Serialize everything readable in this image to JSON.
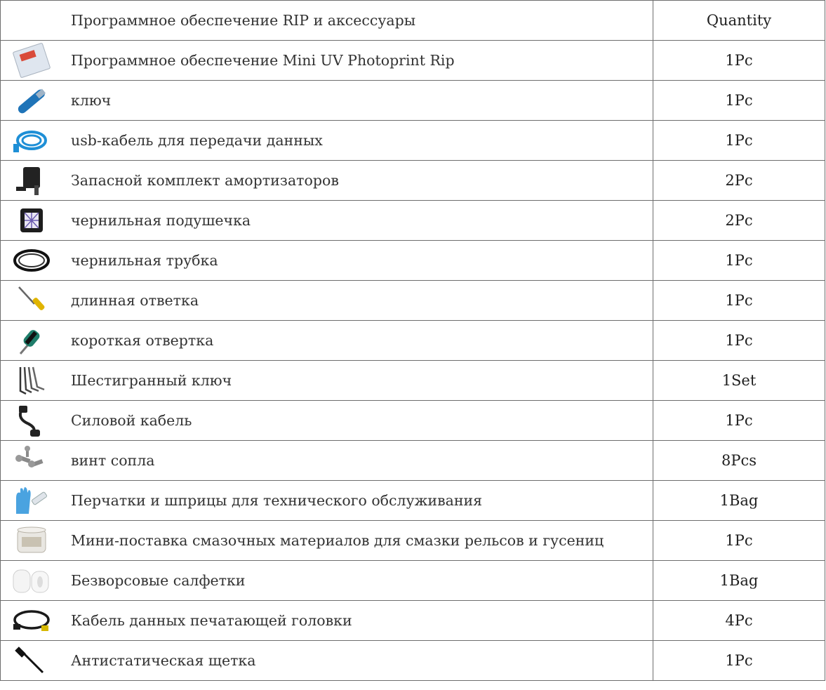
{
  "table": {
    "header": {
      "item": "Программное обеспечение RIP и аксессуары",
      "quantity": "Quantity"
    },
    "rows": [
      {
        "name": "Программное обеспечение Mini UV Photoprint Rip",
        "qty": "1Pc",
        "icon": "software-package-icon"
      },
      {
        "name": "ключ",
        "qty": "1Pc",
        "icon": "usb-dongle-icon"
      },
      {
        "name": "usb-кабель для передачи данных",
        "qty": "1Pc",
        "icon": "usb-cable-icon"
      },
      {
        "name": "Запасной комплект амортизаторов",
        "qty": "2Pc",
        "icon": "damper-icon"
      },
      {
        "name": "чернильная подушечка",
        "qty": "2Pc",
        "icon": "ink-pad-icon"
      },
      {
        "name": "чернильная трубка",
        "qty": "1Pc",
        "icon": "ink-tube-icon"
      },
      {
        "name": "длинная ответка",
        "qty": "1Pc",
        "icon": "long-screwdriver-icon"
      },
      {
        "name": "короткая отвертка",
        "qty": "1Pc",
        "icon": "short-screwdriver-icon"
      },
      {
        "name": "Шестигранный ключ",
        "qty": "1Set",
        "icon": "hex-key-icon"
      },
      {
        "name": "Силовой кабель",
        "qty": "1Pc",
        "icon": "power-cable-icon"
      },
      {
        "name": "винт сопла",
        "qty": "8Pcs",
        "icon": "nozzle-screw-icon"
      },
      {
        "name": "Перчатки и шприцы для технического обслуживания",
        "qty": "1Bag",
        "icon": "gloves-syringe-icon"
      },
      {
        "name": "Мини-поставка смазочных материалов для смазки рельсов и гусениц",
        "qty": "1Pc",
        "icon": "grease-jar-icon"
      },
      {
        "name": "Безворсовые салфетки",
        "qty": "1Bag",
        "icon": "lint-free-wipes-icon"
      },
      {
        "name": "Кабель данных печатающей головки",
        "qty": "4Pc",
        "icon": "printhead-cable-icon"
      },
      {
        "name": "Антистатическая щетка",
        "qty": "1Pc",
        "icon": "antistatic-brush-icon"
      }
    ]
  }
}
